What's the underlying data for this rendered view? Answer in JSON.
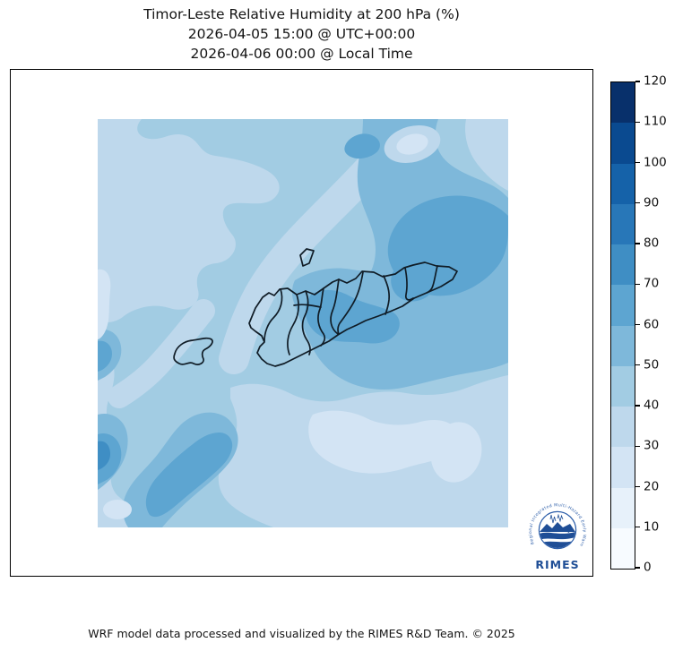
{
  "title": {
    "line1": "Timor-Leste Relative Humidity at 200 hPa (%)",
    "line2": "2026-04-05 15:00 @ UTC+00:00",
    "line3": "2026-04-06 00:00 @ Local Time"
  },
  "footer": {
    "credit": "WRF model data processed and visualized by the RIMES R&D Team. © 2025"
  },
  "logo": {
    "name": "RIMES",
    "ring_text": "Regional Integrated Multi-Hazard Early Warning System"
  },
  "colors": {
    "frame": "#000000",
    "outline": "#101c26",
    "base": "#a2cce3",
    "light": "#bed8ec",
    "xlight": "#d3e4f4",
    "med": "#7eb8da",
    "dark": "#5da5d1",
    "darker": "#3f8ec4",
    "logo_blue": "#1f4e96",
    "logo_mid": "#2a5ca8"
  },
  "colorbar": {
    "ticks": [
      0,
      10,
      20,
      30,
      40,
      50,
      60,
      70,
      80,
      90,
      100,
      110,
      120
    ],
    "segment_colors_bottom_to_top": [
      "#f7fbff",
      "#e7f1fa",
      "#d3e4f4",
      "#bed8ec",
      "#a2cce3",
      "#7eb8da",
      "#5da5d1",
      "#3f8ec4",
      "#2877b8",
      "#1562a9",
      "#0a4a90",
      "#08306b"
    ]
  },
  "chart_data": {
    "type": "heatmap",
    "title": "Timor-Leste Relative Humidity at 200 hPa (%)",
    "subtitle_utc": "2026-04-05 15:00 @ UTC+00:00",
    "subtitle_local": "2026-04-06 00:00 @ Local Time",
    "variable": "Relative Humidity",
    "level_hpa": 200,
    "units": "%",
    "colormap": "Blues",
    "levels": [
      0,
      10,
      20,
      30,
      40,
      50,
      60,
      70,
      80,
      90,
      100,
      110,
      120
    ],
    "colorbar_range": [
      0,
      120
    ],
    "legend_position": "vertical colorbar, right side",
    "region": "Timor-Leste and surrounding seas",
    "grid": false,
    "field_summary": [
      {
        "area": "northwest quadrant light band",
        "approx_value_range": [
          30,
          40
        ]
      },
      {
        "area": "dominant background / central diagonal",
        "approx_value_range": [
          40,
          50
        ]
      },
      {
        "area": "broad maximum northeast of the island (upper right)",
        "approx_value_range": [
          60,
          70
        ]
      },
      {
        "area": "central and eastern Timor-Leste districts and just south of coast",
        "approx_value_range": [
          50,
          70
        ]
      },
      {
        "area": "pockets along western map edge and lower-left diagonal",
        "approx_value_range": [
          60,
          80
        ]
      },
      {
        "area": "large lower-middle / south-east minimum",
        "approx_value_range": [
          20,
          40
        ]
      },
      {
        "area": "small pale spot top-center north of island",
        "approx_value_range": [
          20,
          30
        ]
      }
    ],
    "overlays": [
      "Timor-Leste municipality boundaries (black)",
      "Atauro island outline",
      "Oecusse exclave outline"
    ]
  }
}
